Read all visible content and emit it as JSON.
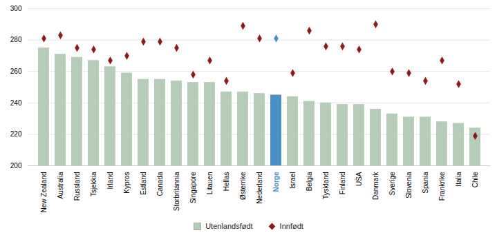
{
  "chart_data": {
    "type": "bar",
    "categories": [
      "New Zealand",
      "Australia",
      "Russland",
      "Tsjekkia",
      "Irland",
      "Kypros",
      "Estland",
      "Canada",
      "Storbritannia",
      "Singapore",
      "Litauen",
      "Hellas",
      "Østerrike",
      "Nederland",
      "Norge",
      "Israel",
      "Belgia",
      "Tyskland",
      "Finland",
      "USA",
      "Danmark",
      "Sverige",
      "Slovenia",
      "Spania",
      "Frankrike",
      "Italia",
      "Chile"
    ],
    "series": [
      {
        "name": "Utenlandsfødt",
        "type": "bar",
        "color": "#b5ccb8",
        "colors": [
          "#b5ccb8",
          "#b5ccb8",
          "#b5ccb8",
          "#b5ccb8",
          "#b5ccb8",
          "#b5ccb8",
          "#b5ccb8",
          "#b5ccb8",
          "#b5ccb8",
          "#b5ccb8",
          "#b5ccb8",
          "#b5ccb8",
          "#b5ccb8",
          "#b5ccb8",
          "#4a90c4",
          "#b5ccb8",
          "#b5ccb8",
          "#b5ccb8",
          "#b5ccb8",
          "#b5ccb8",
          "#b5ccb8",
          "#b5ccb8",
          "#b5ccb8",
          "#b5ccb8",
          "#b5ccb8",
          "#b5ccb8",
          "#b5ccb8"
        ],
        "values": [
          275,
          271,
          269,
          267,
          263,
          259,
          255,
          255,
          254,
          253,
          253,
          247,
          247,
          246,
          245,
          244,
          241,
          240,
          239,
          239,
          236,
          233,
          231,
          231,
          228,
          227,
          224
        ]
      },
      {
        "name": "Innfødt",
        "type": "scatter",
        "marker": "diamond",
        "color": "#8b1a1a",
        "colors": [
          "#8b1a1a",
          "#8b1a1a",
          "#8b1a1a",
          "#8b1a1a",
          "#8b1a1a",
          "#8b1a1a",
          "#8b1a1a",
          "#8b1a1a",
          "#8b1a1a",
          "#8b1a1a",
          "#8b1a1a",
          "#8b1a1a",
          "#8b1a1a",
          "#8b1a1a",
          "#4a90c4",
          "#8b1a1a",
          "#8b1a1a",
          "#8b1a1a",
          "#8b1a1a",
          "#8b1a1a",
          "#8b1a1a",
          "#8b1a1a",
          "#8b1a1a",
          "#8b1a1a",
          "#8b1a1a",
          "#8b1a1a",
          "#8b1a1a"
        ],
        "values": [
          281,
          283,
          275,
          274,
          267,
          270,
          279,
          279,
          275,
          258,
          267,
          254,
          289,
          281,
          281,
          259,
          286,
          276,
          276,
          274,
          290,
          260,
          259,
          254,
          267,
          252,
          219
        ]
      }
    ],
    "ylim": [
      200,
      300
    ],
    "yticks": [
      200,
      220,
      240,
      260,
      280,
      300
    ],
    "grid": true,
    "legend": "bottom"
  }
}
